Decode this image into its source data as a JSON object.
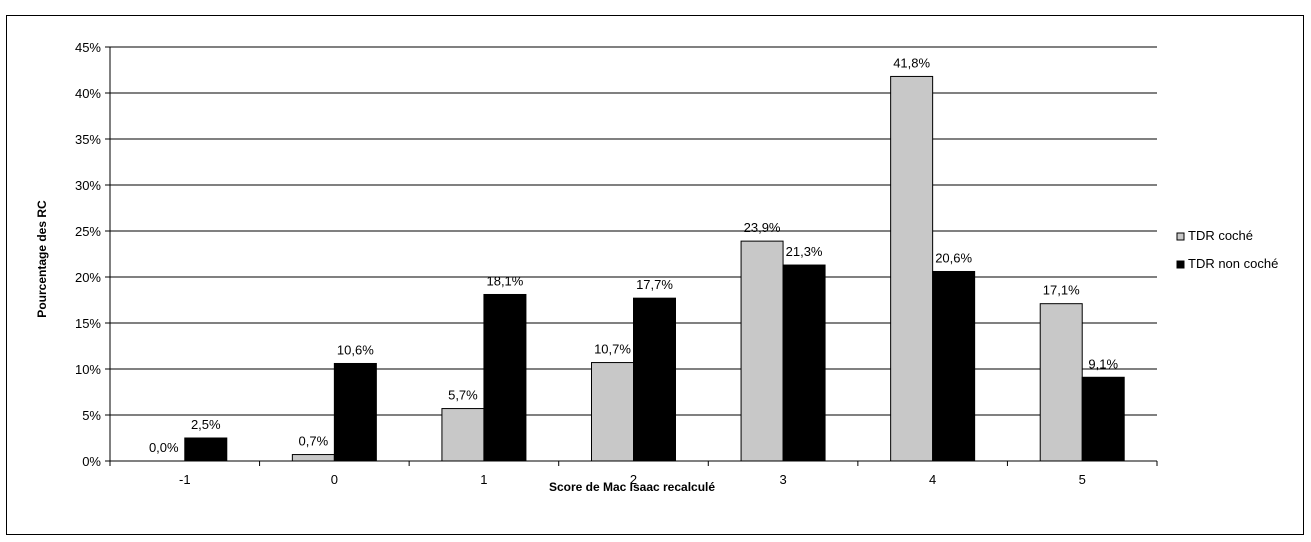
{
  "chart_data": {
    "type": "bar",
    "title": "",
    "xlabel": "Score de Mac Isaac recalculé",
    "ylabel": "Pourcentage des RC",
    "categories": [
      "-1",
      "0",
      "1",
      "2",
      "3",
      "4",
      "5"
    ],
    "ylim": [
      0,
      45
    ],
    "y_ticks": [
      "0%",
      "5%",
      "10%",
      "15%",
      "20%",
      "25%",
      "30%",
      "35%",
      "40%",
      "45%"
    ],
    "grid": true,
    "legend_position": "right",
    "series": [
      {
        "name": "TDR coché",
        "color": "#c8c8c8",
        "values": [
          0.0,
          0.7,
          5.7,
          10.7,
          23.9,
          41.8,
          17.1
        ],
        "labels": [
          "0,0%",
          "0,7%",
          "5,7%",
          "10,7%",
          "23,9%",
          "41,8%",
          "17,1%"
        ]
      },
      {
        "name": "TDR non coché",
        "color": "#000000",
        "values": [
          2.5,
          10.6,
          18.1,
          17.7,
          21.3,
          20.6,
          9.1
        ],
        "labels": [
          "2,5%",
          "10,6%",
          "18,1%",
          "17,7%",
          "21,3%",
          "20,6%",
          "9,1%"
        ]
      }
    ]
  }
}
